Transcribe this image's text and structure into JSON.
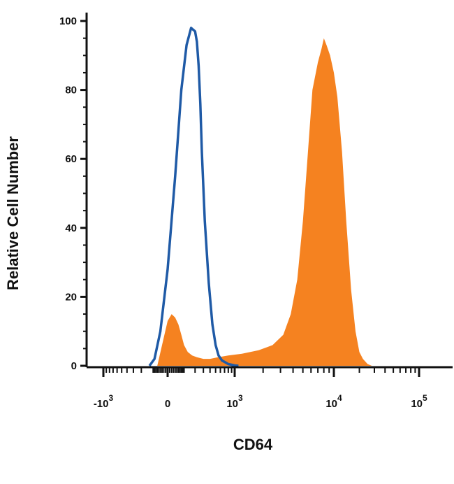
{
  "chart_data": {
    "type": "area",
    "title": "",
    "xlabel": "CD64",
    "ylabel": "Relative Cell Number",
    "x_scale": "biexponential",
    "x_ticks": [
      {
        "value": -1000,
        "base": "-10",
        "exp": "3"
      },
      {
        "value": 0,
        "base": "0",
        "exp": ""
      },
      {
        "value": 1000,
        "base": "10",
        "exp": "3"
      },
      {
        "value": 10000,
        "base": "10",
        "exp": "4"
      },
      {
        "value": 100000,
        "base": "10",
        "exp": "5"
      }
    ],
    "y_ticks": [
      0,
      20,
      40,
      60,
      80,
      100
    ],
    "ylim": [
      0,
      100
    ],
    "grid": false,
    "legend": "none",
    "colors": {
      "filled": "#f58220",
      "outline": "#1f5aa6",
      "axis": "#111111"
    },
    "series": [
      {
        "style": "filled",
        "color": "#f58220",
        "x": [
          -60,
          -30,
          0,
          20,
          40,
          60,
          80,
          100,
          130,
          170,
          220,
          300,
          400,
          550,
          800,
          1200,
          1800,
          2500,
          3200,
          3800,
          4400,
          5000,
          5600,
          6200,
          7000,
          7600,
          8000,
          8500,
          9200,
          10000,
          11000,
          12500,
          14000,
          16000,
          18000,
          20000,
          22000,
          25000,
          28000
        ],
        "y": [
          0,
          6,
          13,
          15,
          14,
          12,
          9,
          6,
          4,
          3,
          2.5,
          2,
          2,
          2.5,
          3,
          3.5,
          4.5,
          6,
          9,
          15,
          25,
          42,
          62,
          80,
          88,
          92,
          95,
          93,
          90,
          85,
          78,
          62,
          42,
          22,
          10,
          4,
          2,
          0.5,
          0
        ]
      },
      {
        "style": "outline",
        "color": "#1f5aa6",
        "x": [
          -120,
          -80,
          -40,
          0,
          40,
          80,
          120,
          160,
          200,
          220,
          240,
          260,
          280,
          320,
          380,
          440,
          500,
          560,
          640,
          720,
          800,
          900,
          1000,
          1100
        ],
        "y": [
          0,
          2,
          10,
          28,
          55,
          80,
          93,
          98,
          97,
          94,
          87,
          76,
          62,
          42,
          24,
          12,
          6,
          3,
          1.5,
          1,
          0.5,
          0.3,
          0.1,
          0
        ]
      }
    ]
  }
}
